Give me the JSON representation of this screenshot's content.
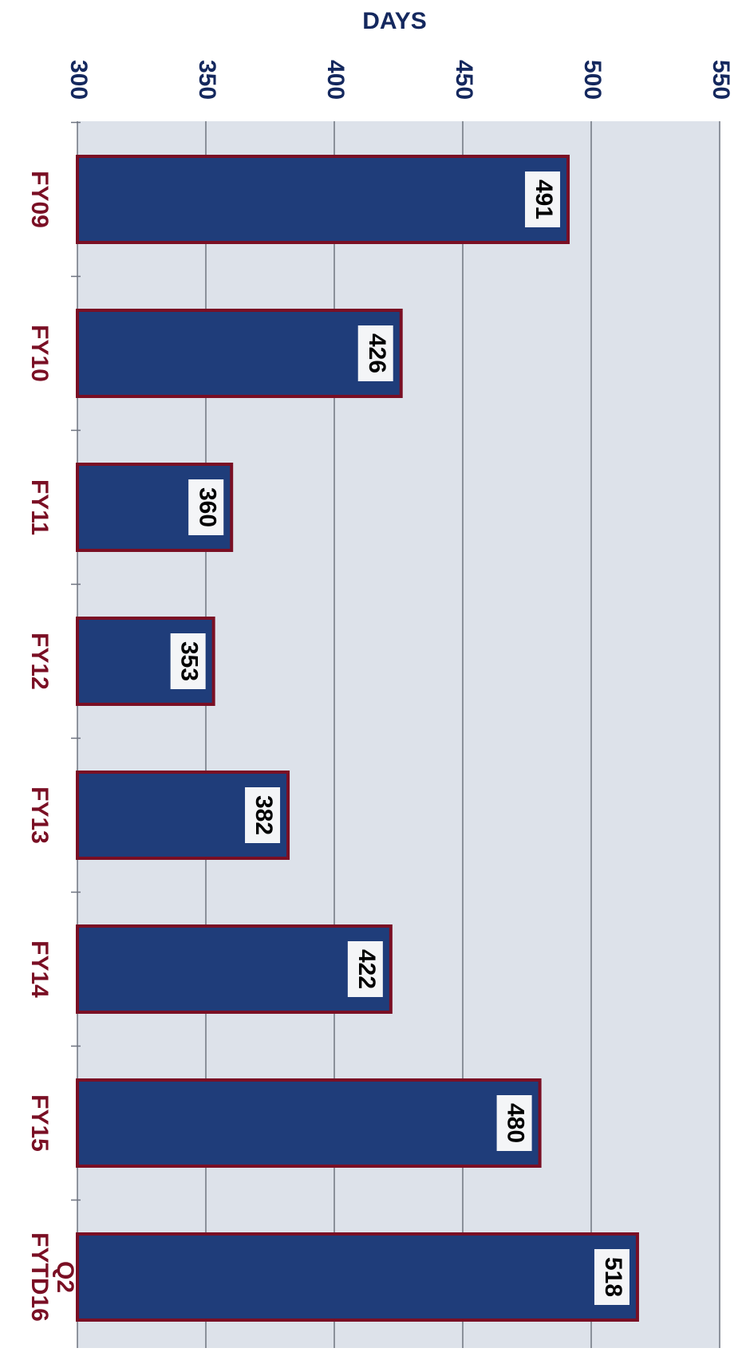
{
  "chart_data": {
    "type": "bar",
    "orientation": "horizontal",
    "title": "",
    "xlabel": "DAYS",
    "ylabel": "",
    "xlim": [
      300,
      550
    ],
    "x_ticks": [
      300,
      350,
      400,
      450,
      500,
      550
    ],
    "grid": true,
    "categories": [
      "FY09",
      "FY10",
      "FY11",
      "FY12",
      "FY13",
      "FY14",
      "FY15",
      "FYTD16 Q2"
    ],
    "values": [
      491,
      426,
      360,
      353,
      382,
      422,
      480,
      518
    ],
    "data_labels": [
      "491",
      "426",
      "360",
      "353",
      "382",
      "422",
      "480",
      "518"
    ],
    "colors": {
      "bar_fill": "#1f3d7a",
      "bar_edge": "#7a0f24",
      "category_label": "#7a0f24",
      "axis_label": "#14285e",
      "plot_background": "#dde2ea",
      "gridline": "#6e7480",
      "data_label_box": "#f4f5f7",
      "data_label_text": "#000000"
    }
  }
}
